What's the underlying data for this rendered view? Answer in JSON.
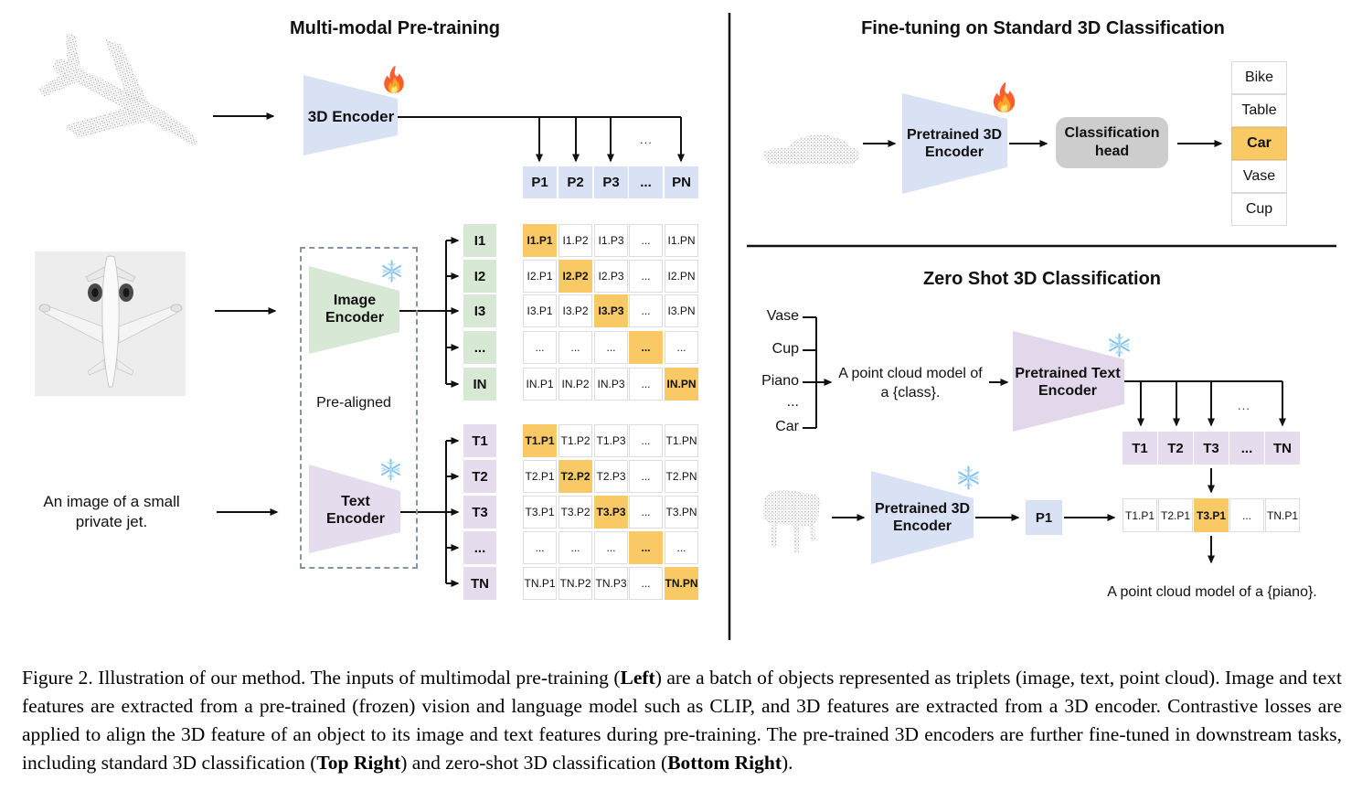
{
  "left_panel": {
    "title": "Multi-modal Pre-training",
    "encoder_3d_label": "3D Encoder",
    "image_encoder_line1": "Image",
    "image_encoder_line2": "Encoder",
    "text_encoder_line1": "Text",
    "text_encoder_line2": "Encoder",
    "pre_aligned_label": "Pre-aligned",
    "text_input_line1": "An image of a small",
    "text_input_line2": "private jet.",
    "drop_ellipsis": "...",
    "p_row": [
      "P1",
      "P2",
      "P3",
      "...",
      "PN"
    ],
    "i_rows": [
      "I1",
      "I2",
      "I3",
      "...",
      "IN"
    ],
    "t_rows": [
      "T1",
      "T2",
      "T3",
      "...",
      "TN"
    ],
    "i_matrix": [
      [
        "I1.P1",
        "I1.P2",
        "I1.P3",
        "...",
        "I1.PN"
      ],
      [
        "I2.P1",
        "I2.P2",
        "I2.P3",
        "...",
        "I2.PN"
      ],
      [
        "I3.P1",
        "I3.P2",
        "I3.P3",
        "...",
        "I3.PN"
      ],
      [
        "...",
        "...",
        "...",
        "...",
        "..."
      ],
      [
        "IN.P1",
        "IN.P2",
        "IN.P3",
        "...",
        "IN.PN"
      ]
    ],
    "t_matrix": [
      [
        "T1.P1",
        "T1.P2",
        "T1.P3",
        "...",
        "T1.PN"
      ],
      [
        "T2.P1",
        "T2.P2",
        "T2.P3",
        "...",
        "T2.PN"
      ],
      [
        "T3.P1",
        "T3.P2",
        "T3.P3",
        "...",
        "T3.PN"
      ],
      [
        "...",
        "...",
        "...",
        "...",
        "..."
      ],
      [
        "TN.P1",
        "TN.P2",
        "TN.P3",
        "...",
        "TN.PN"
      ]
    ]
  },
  "top_right_panel": {
    "title": "Fine-tuning on Standard 3D Classification",
    "encoder_line1": "Pretrained 3D",
    "encoder_line2": "Encoder",
    "head_line1": "Classification",
    "head_line2": "head",
    "classes": [
      "Bike",
      "Table",
      "Car",
      "Vase",
      "Cup"
    ],
    "highlight_index": 2,
    "highlighted_class": "Car"
  },
  "bottom_right_panel": {
    "title": "Zero Shot 3D Classification",
    "class_prompts": [
      "Vase",
      "Cup",
      "Piano",
      "...",
      "Car"
    ],
    "prompt_line1": "A point cloud model of",
    "prompt_line2": "a {class}.",
    "text_encoder_line1": "Pretrained Text",
    "text_encoder_line2": "Encoder",
    "encoder_line1": "Pretrained 3D",
    "encoder_line2": "Encoder",
    "p1_label": "P1",
    "t_row": [
      "T1",
      "T2",
      "T3",
      "...",
      "TN"
    ],
    "tp_row": [
      "T1.P1",
      "T2.P1",
      "T3.P1",
      "...",
      "TN.P1"
    ],
    "tp_highlight_index": 2,
    "drop_ellipsis": "...",
    "result_text": "A point cloud model of a {piano}."
  },
  "icons": {
    "flame": "flame-icon (trainable)",
    "snowflake": "snowflake-icon (frozen)"
  },
  "colors": {
    "encoder_blue": "#d9e2f4",
    "encoder_green": "#d7e8d4",
    "encoder_purple": "#e5dcee",
    "highlight_orange": "#f8c965",
    "head_gray": "#cdcdcd",
    "line_black": "#111111"
  },
  "caption": {
    "segments": [
      {
        "text": "Figure 2. Illustration of our method. The inputs of multimodal pre-training (",
        "bold": false
      },
      {
        "text": "Left",
        "bold": true
      },
      {
        "text": ") are a batch of objects represented as triplets (image, text, point cloud). Image and text features are extracted from a pre-trained (frozen) vision and language model such as CLIP, and 3D features are extracted from a 3D encoder. Contrastive losses are applied to align the 3D feature of an object to its image and text features during pre-training. The pre-trained 3D encoders are further fine-tuned in downstream tasks, including standard 3D classification (",
        "bold": false
      },
      {
        "text": "Top Right",
        "bold": true
      },
      {
        "text": ") and zero-shot 3D classification (",
        "bold": false
      },
      {
        "text": "Bottom Right",
        "bold": true
      },
      {
        "text": ").",
        "bold": false
      }
    ]
  }
}
